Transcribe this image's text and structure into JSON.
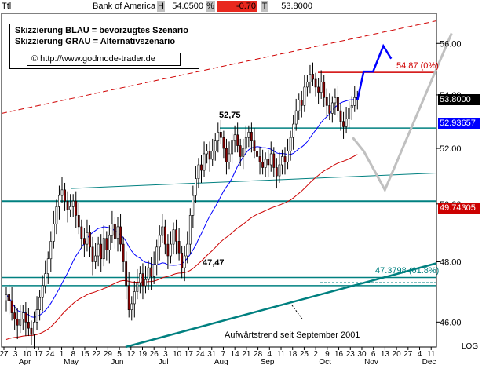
{
  "header": {
    "ttl": "Ttl",
    "name": "Bank of America",
    "h_label": "H",
    "h_value": "54.0500",
    "pct": "%",
    "change": "-0.70",
    "t_label": "T",
    "t_value": "53.8000"
  },
  "legend": {
    "line1": "Skizzierung BLAU = bevorzugtes Szenario",
    "line2": "Skizzierung GRAU = Alternativszenario",
    "copyright": "© http://www.godmode-trader.de"
  },
  "price_tags": {
    "last": "53.8000",
    "ma_blue": "52.93657",
    "ma_red": "49.74305"
  },
  "annotations": {
    "high": "52,75",
    "low": "47,47",
    "fib": "54.87 (0%)",
    "fib2": "47.3798 (61.8%)",
    "trend": "Aufwärtstrend seit September 2001"
  },
  "colors": {
    "candle_up": "#ffffff",
    "candle_down": "#8b0000",
    "teal": "#008080",
    "ma_blue": "#0000ff",
    "ma_red": "#cc0000",
    "scenario_blue": "#0000ff",
    "scenario_grey": "#c0c0c0",
    "resistance_red": "#d00000"
  },
  "chart_data": {
    "type": "candlestick",
    "title": "Bank of America",
    "log_scale": true,
    "y_axis_label": "LOG",
    "ylim": [
      45.2,
      57.2
    ],
    "y_ticks": [
      46.0,
      48.0,
      50.0,
      52.0,
      54.0,
      56.0
    ],
    "x_day_labels": [
      "27",
      "3",
      "10",
      "17",
      "24",
      "1",
      "8",
      "15",
      "22",
      "29",
      "5",
      "12",
      "19",
      "26",
      "3",
      "10",
      "17",
      "24",
      "31",
      "7",
      "14",
      "21",
      "28",
      "4",
      "11",
      "18",
      "25",
      "2",
      "9",
      "16",
      "23",
      "30",
      "6",
      "13",
      "20",
      "27",
      "4",
      "11"
    ],
    "x_month_labels": [
      "Apr",
      "May",
      "Jun",
      "Jul",
      "Aug",
      "Sep",
      "Oct",
      "Nov",
      "Dec"
    ],
    "closes": [
      46.9,
      46.7,
      46.3,
      46.1,
      45.9,
      46.1,
      46.3,
      46.0,
      45.8,
      45.6,
      46.0,
      46.4,
      46.8,
      47.2,
      47.6,
      48.1,
      48.7,
      49.3,
      49.9,
      50.3,
      50.5,
      50.1,
      49.8,
      49.9,
      50.1,
      49.6,
      49.2,
      48.8,
      48.6,
      49.0,
      48.5,
      48.0,
      48.2,
      48.6,
      48.1,
      48.8,
      48.4,
      48.9,
      49.3,
      48.8,
      49.2,
      48.6,
      48.0,
      47.2,
      46.4,
      46.6,
      47.0,
      47.3,
      47.6,
      47.2,
      47.4,
      47.8,
      47.5,
      47.9,
      48.5,
      48.9,
      49.2,
      48.6,
      48.2,
      48.6,
      49.1,
      48.7,
      48.3,
      47.8,
      48.2,
      48.6,
      49.6,
      50.3,
      50.9,
      51.4,
      51.2,
      51.8,
      51.9,
      51.6,
      51.9,
      52.3,
      52.6,
      52.4,
      52.0,
      51.5,
      51.8,
      52.3,
      52.5,
      52.1,
      51.7,
      52.0,
      52.4,
      52.6,
      52.3,
      51.9,
      51.7,
      51.5,
      51.3,
      51.6,
      51.4,
      51.8,
      51.3,
      51.0,
      51.4,
      51.7,
      51.5,
      51.9,
      52.4,
      52.9,
      53.4,
      53.8,
      53.6,
      54.3,
      54.5,
      54.8,
      54.6,
      54.3,
      54.1,
      54.5,
      53.9,
      53.6,
      53.3,
      53.7,
      53.9,
      53.4,
      53.0,
      52.8,
      53.1,
      53.5,
      53.6,
      53.9,
      53.8
    ],
    "series": [
      {
        "name": "52.93657",
        "type": "moving_average"
      },
      {
        "name": "49.74305",
        "type": "moving_average"
      }
    ],
    "horizontal_levels": [
      52.75,
      50.1,
      47.47,
      47.2,
      54.87
    ],
    "scenario_blue_points": [
      [
        53.8,
        54.9
      ],
      [
        54.9,
        55.9
      ],
      [
        55.9,
        55.4
      ]
    ],
    "scenario_grey_points": [
      [
        52.4,
        51.9
      ],
      [
        51.9,
        50.5
      ],
      [
        50.5,
        56.4
      ]
    ]
  }
}
